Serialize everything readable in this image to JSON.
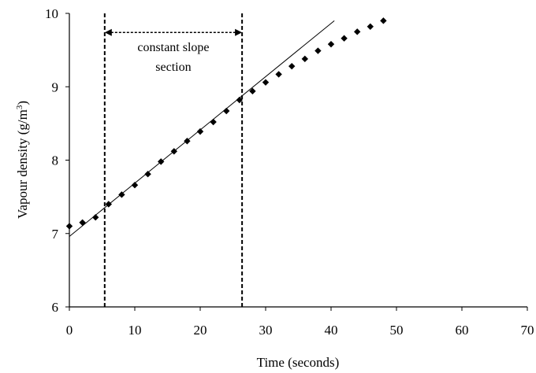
{
  "chart_data": {
    "type": "scatter",
    "title": "",
    "xlabel": "Time (seconds)",
    "ylabel": "Vapour density (g/m",
    "ylabel_superscript": "3",
    "ylabel_suffix": ")",
    "xlim": [
      0,
      70
    ],
    "ylim": [
      6,
      10
    ],
    "x_ticks": [
      0,
      10,
      20,
      30,
      40,
      50,
      60,
      70
    ],
    "y_ticks": [
      6,
      7,
      8,
      9,
      10
    ],
    "grid": false,
    "colors": {
      "points": "#000000",
      "line": "#000000",
      "axes": "#000000"
    },
    "series": [
      {
        "marker": "diamond",
        "points": [
          [
            0,
            7.1
          ],
          [
            2,
            7.15
          ],
          [
            4,
            7.22
          ],
          [
            6,
            7.4
          ],
          [
            8,
            7.53
          ],
          [
            10,
            7.66
          ],
          [
            12,
            7.81
          ],
          [
            14,
            7.98
          ],
          [
            16,
            8.12
          ],
          [
            18,
            8.26
          ],
          [
            20,
            8.39
          ],
          [
            22,
            8.52
          ],
          [
            24,
            8.67
          ],
          [
            26,
            8.82
          ],
          [
            28,
            8.94
          ],
          [
            30,
            9.06
          ],
          [
            32,
            9.17
          ],
          [
            34,
            9.28
          ],
          [
            36,
            9.38
          ],
          [
            38,
            9.49
          ],
          [
            40,
            9.58
          ],
          [
            42,
            9.66
          ],
          [
            44,
            9.75
          ],
          [
            46,
            9.82
          ],
          [
            48,
            9.9
          ]
        ]
      }
    ],
    "fit_line": {
      "x": [
        0,
        40.5
      ],
      "y": [
        6.96,
        9.9
      ]
    },
    "vertical_lines": [
      5.4,
      26.4
    ],
    "annotation": {
      "line1": "constant slope",
      "line2": "section",
      "arrow_from_x": 5.4,
      "arrow_to_x": 26.4,
      "arrow_y": 9.74
    }
  }
}
